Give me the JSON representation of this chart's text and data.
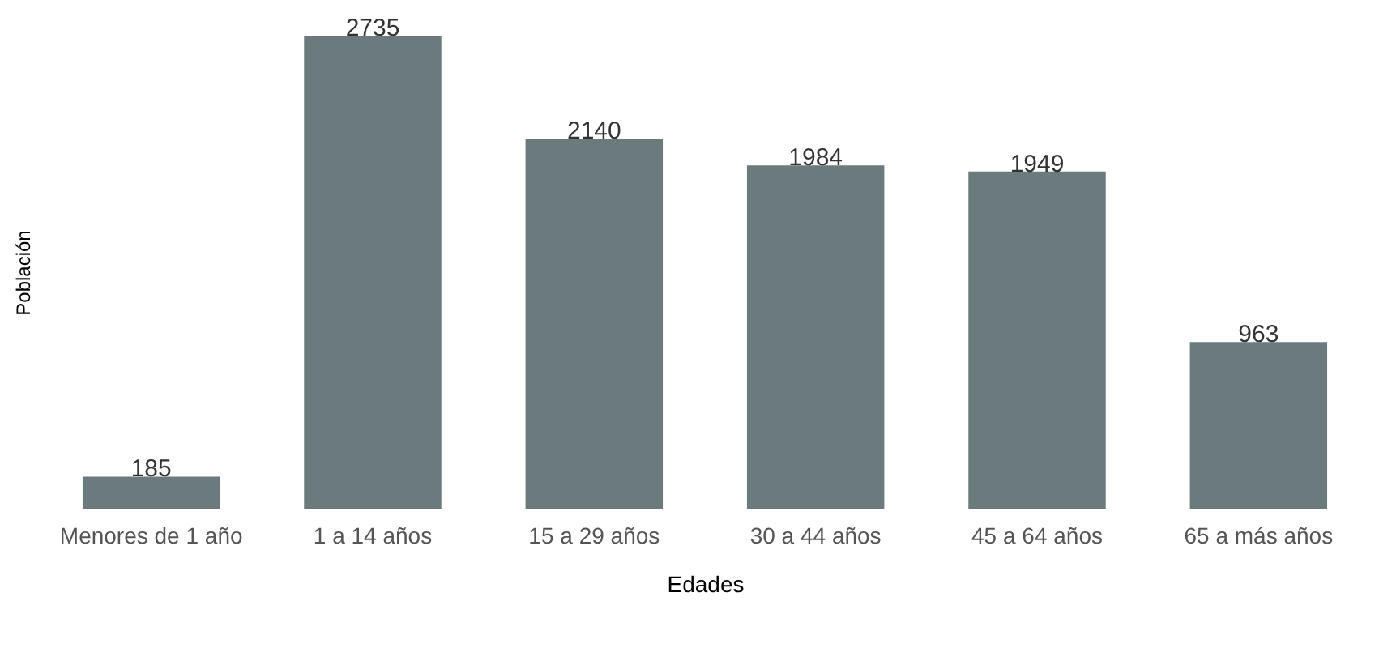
{
  "chart_data": {
    "type": "bar",
    "xlabel": "Edades",
    "ylabel": "Población",
    "categories": [
      "Menores de 1 año",
      "1 a 14 años",
      "15 a 29 años",
      "30 a 44 años",
      "45 a 64 años",
      "65 a más años"
    ],
    "values": [
      185,
      2735,
      2140,
      1984,
      1949,
      963
    ],
    "color": "#6b7a7d",
    "data_labels": true
  }
}
